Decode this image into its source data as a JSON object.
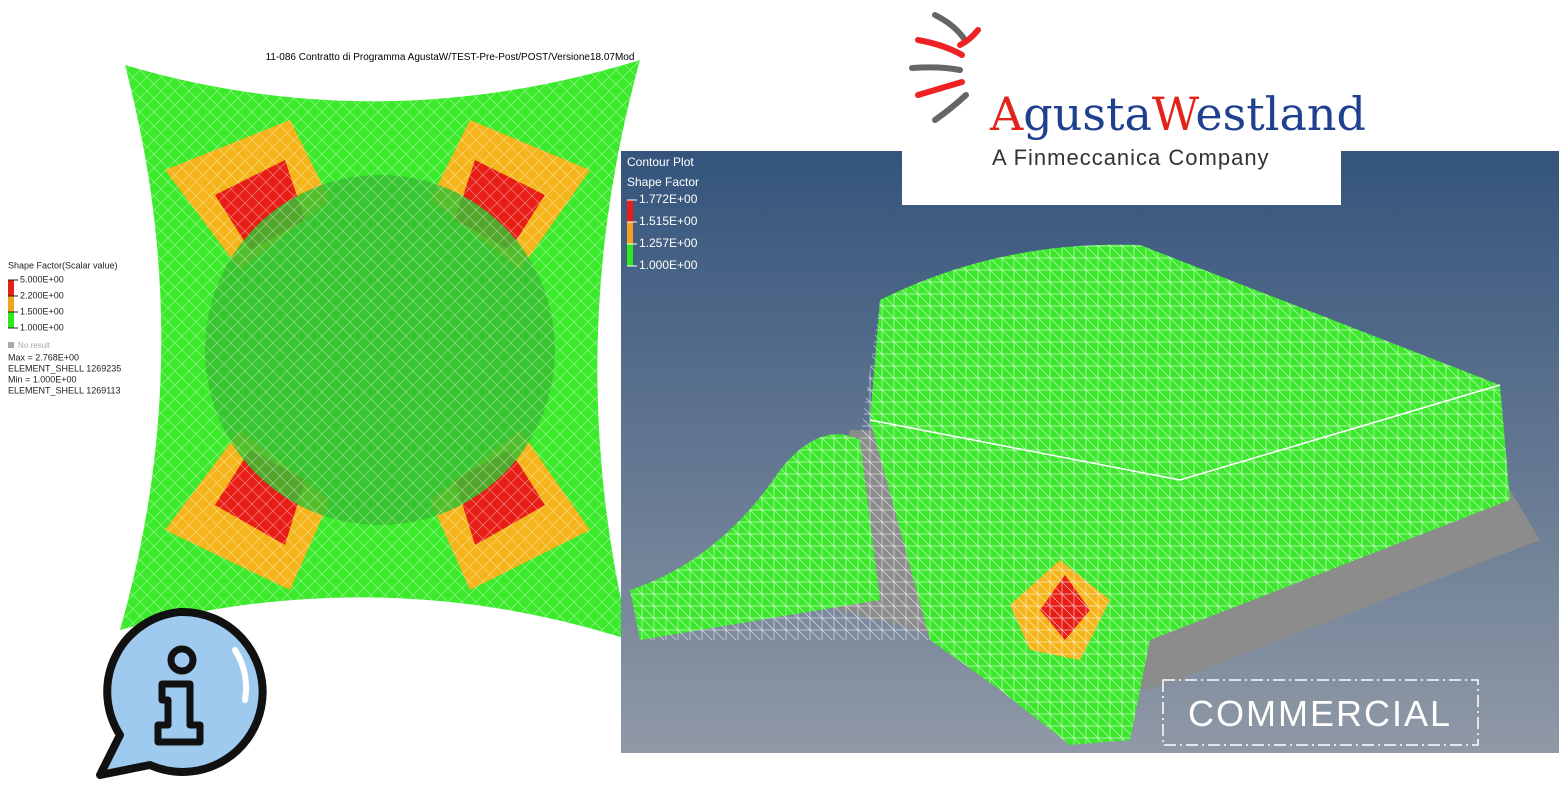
{
  "left_plot": {
    "title": "11-086 Contratto di Programma AgustaW/TEST-Pre-Post/POST/Versione18.07Mod",
    "legend": {
      "title": "Shape Factor(Scalar value)",
      "levels": [
        "5.000E+00",
        "2.200E+00",
        "1.500E+00",
        "1.000E+00"
      ],
      "no_result": "No result",
      "stats": [
        "Max = 2.768E+00",
        "ELEMENT_SHELL 1269235",
        "Min = 1.000E+00",
        "ELEMENT_SHELL 1269113"
      ]
    }
  },
  "logo": {
    "name": "AgustaWestland",
    "tagline": "A Finmeccanica Company"
  },
  "right_plot": {
    "legend": {
      "title": "Contour Plot",
      "subtitle": "Shape Factor",
      "levels": [
        "1.772E+00",
        "1.515E+00",
        "1.257E+00",
        "1.000E+00"
      ]
    }
  },
  "badge": "COMMERCIAL"
}
